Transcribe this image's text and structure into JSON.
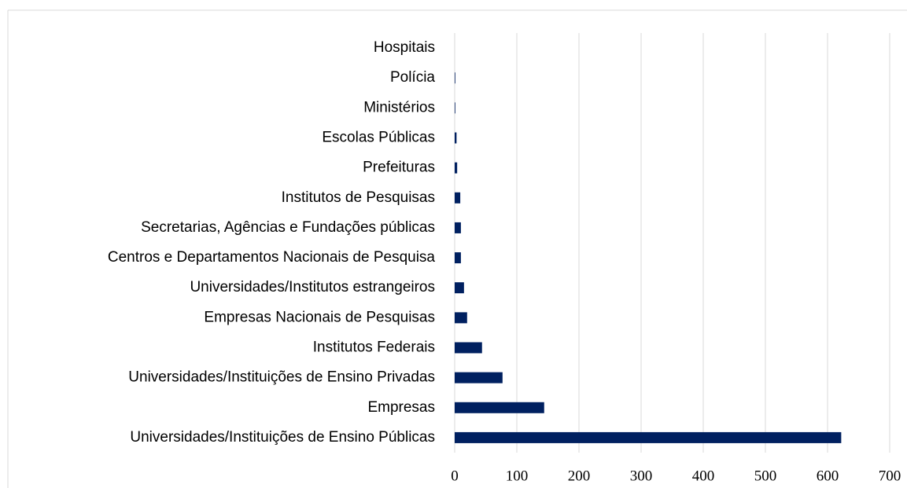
{
  "chart_data": {
    "type": "bar",
    "orientation": "horizontal",
    "categories": [
      "Hospitais",
      "Polícia",
      "Ministérios",
      "Escolas Públicas",
      "Prefeituras",
      "Institutos de Pesquisas",
      "Secretarias, Agências e Fundações públicas",
      "Centros e Departamentos Nacionais de Pesquisa",
      "Universidades/Institutos estrangeiros",
      "Empresas Nacionais de Pesquisas",
      "Institutos Federais",
      "Universidades/Instituições de Ensino Privadas",
      "Empresas",
      "Universidades/Instituições de Ensino Públicas"
    ],
    "values": [
      0,
      1,
      1,
      3,
      4,
      9,
      10,
      10,
      15,
      20,
      44,
      77,
      144,
      622
    ],
    "color": "#002060",
    "xlim": [
      0,
      700
    ],
    "xticks": [
      0,
      100,
      200,
      300,
      400,
      500,
      600,
      700
    ],
    "grid": true
  }
}
